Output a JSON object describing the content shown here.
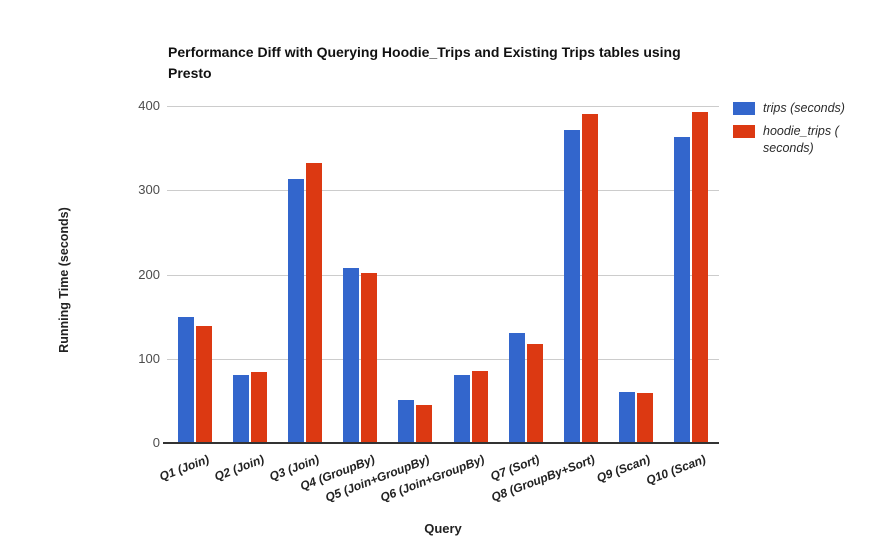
{
  "chart_data": {
    "type": "bar",
    "title": "Performance Diff with Querying Hoodie_Trips and Existing Trips tables using Presto",
    "xlabel": "Query",
    "ylabel": "Running Time (seconds)",
    "categories": [
      "Q1 (Join)",
      "Q2 (Join)",
      "Q3 (Join)",
      "Q4 (GroupBy)",
      "Q5 (Join+GroupBy)",
      "Q6 (Join+GroupBy)",
      "Q7 (Sort)",
      "Q8 (GroupBy+Sort)",
      "Q9 (Scan)",
      "Q10 (Scan)"
    ],
    "series": [
      {
        "name": "trips (seconds)",
        "legend_label": "trips (seconds)",
        "color": "#3366CC",
        "values": [
          150,
          81,
          313,
          208,
          51,
          81,
          131,
          371,
          60,
          363
        ]
      },
      {
        "name": "hoodie_trips (seconds)",
        "legend_label": "hoodie_trips (\nseconds)",
        "color": "#DC3912",
        "values": [
          139,
          84,
          332,
          202,
          45,
          85,
          117,
          390,
          59,
          393
        ]
      }
    ],
    "ylim": [
      0,
      400
    ],
    "yticks": [
      0,
      100,
      200,
      300,
      400
    ],
    "grid": true,
    "legend_position": "right",
    "colors": {
      "grid": "#cccccc",
      "axis_line": "#333333",
      "tick_text": "#4d4d4d"
    }
  }
}
